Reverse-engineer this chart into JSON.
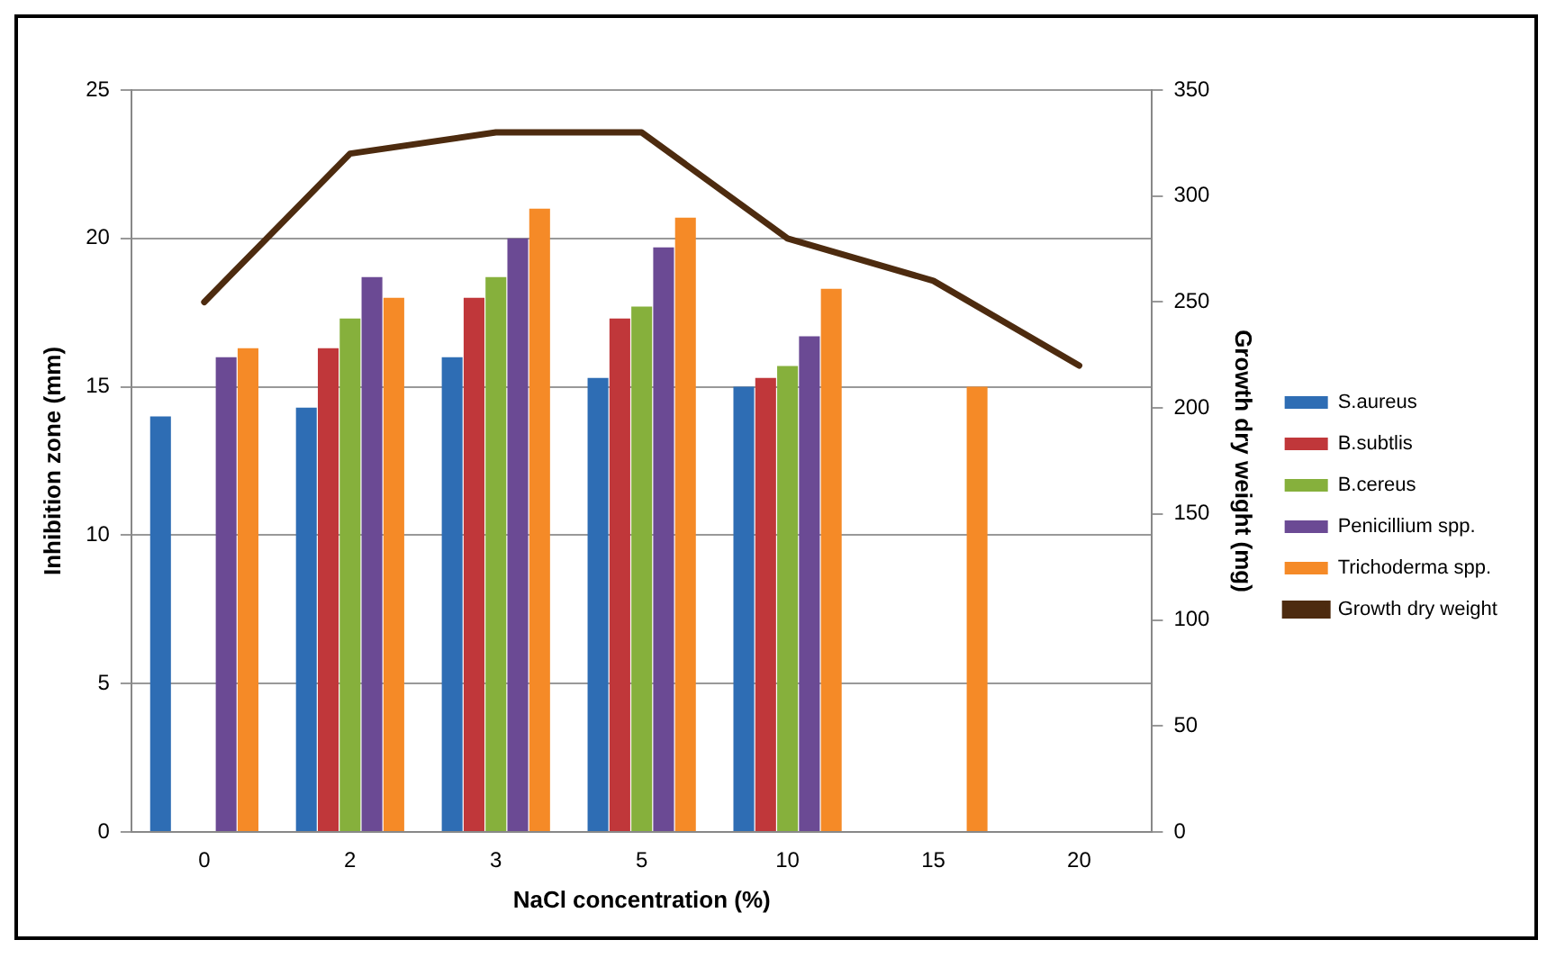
{
  "chart_data": {
    "type": "bar",
    "xlabel": "NaCl concentration (%)",
    "ylabel": "Inhibition zone (mm)",
    "y2label": "Growth dry weight (mg)",
    "categories": [
      "0",
      "2",
      "3",
      "5",
      "10",
      "15",
      "20"
    ],
    "series": [
      {
        "name": "S.aureus",
        "color": "#2e6db4",
        "values": [
          14,
          14.3,
          16,
          15.3,
          15,
          null,
          null
        ]
      },
      {
        "name": "B.subtlis",
        "color": "#c0373a",
        "values": [
          null,
          16.3,
          18,
          17.3,
          15.3,
          null,
          null
        ]
      },
      {
        "name": "B.cereus",
        "color": "#86b03c",
        "values": [
          null,
          17.3,
          18.7,
          17.7,
          15.7,
          null,
          null
        ]
      },
      {
        "name": "Penicillium spp.",
        "color": "#6b4a94",
        "values": [
          16,
          18.7,
          20,
          19.7,
          16.7,
          null,
          null
        ]
      },
      {
        "name": "Trichoderma spp.",
        "color": "#f58a27",
        "values": [
          16.3,
          18,
          21,
          20.7,
          18.3,
          15,
          null
        ]
      },
      {
        "name": "Growth dry weight",
        "type": "line",
        "axis": "y2",
        "color": "#4d2b0f",
        "values": [
          250,
          320,
          330,
          330,
          280,
          260,
          220
        ]
      }
    ],
    "ylim": [
      0,
      25
    ],
    "yticks": [
      0,
      5,
      10,
      15,
      20,
      25
    ],
    "y2lim": [
      0,
      350
    ],
    "y2ticks": [
      0,
      50,
      100,
      150,
      200,
      250,
      300,
      350
    ],
    "grid": "y",
    "legend": "right",
    "marker": "none"
  }
}
